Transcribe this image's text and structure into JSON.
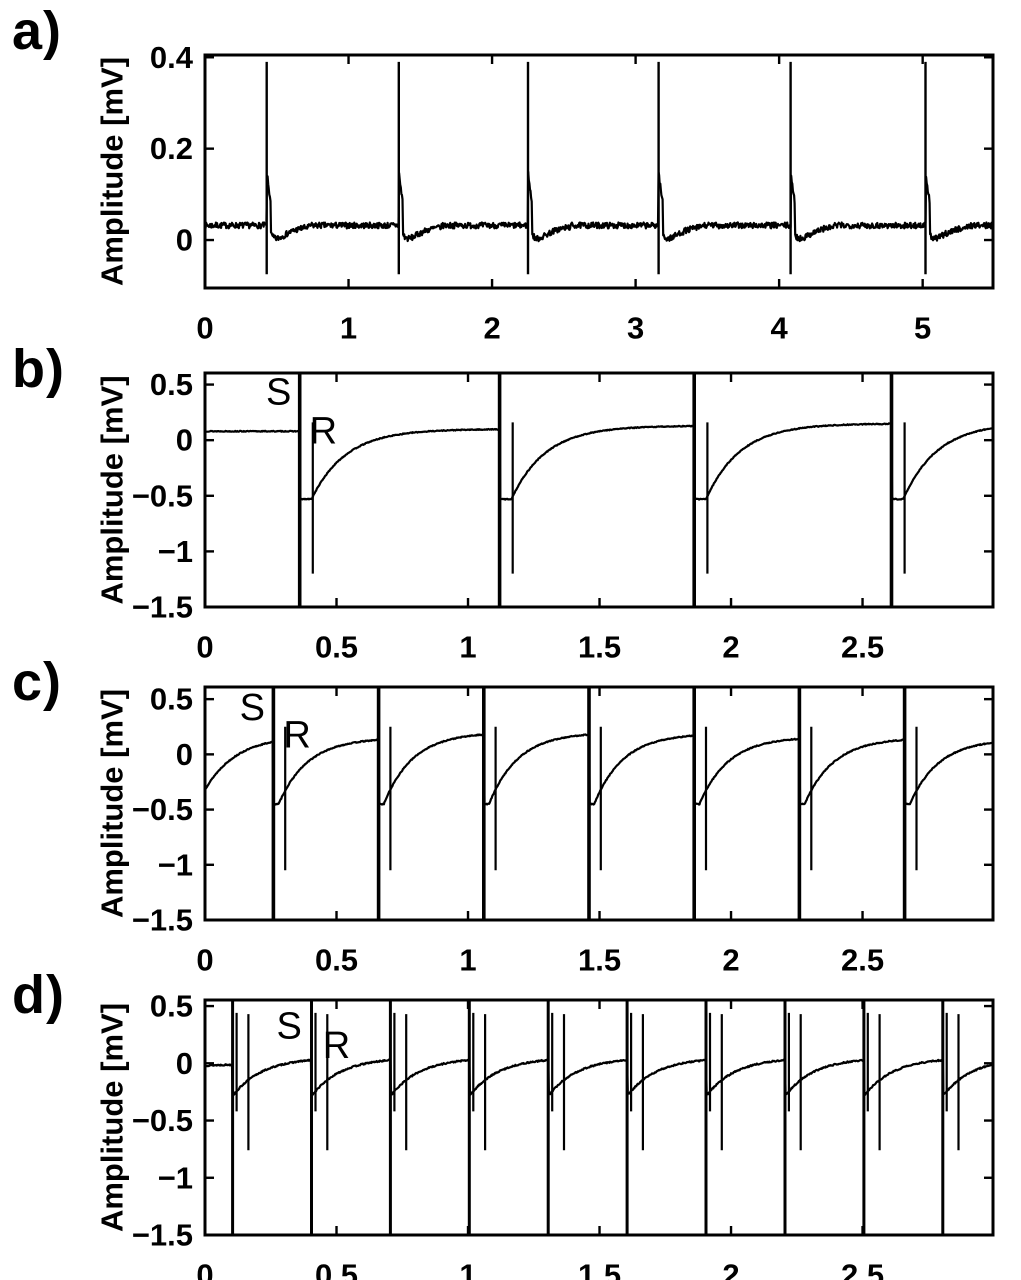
{
  "figure": {
    "panels": [
      {
        "letter": "a)"
      },
      {
        "letter": "b)"
      },
      {
        "letter": "c)"
      },
      {
        "letter": "d)"
      }
    ],
    "ink_color": "#000000",
    "background_color": "#ffffff"
  },
  "chart_data": [
    {
      "type": "line",
      "panel": "a",
      "title": "",
      "xlabel": "",
      "ylabel": "Amplitude [mV]",
      "xlim": [
        0,
        5.49
      ],
      "ylim": [
        -0.105,
        0.405
      ],
      "xticks": [
        0,
        1,
        2,
        3,
        4,
        5
      ],
      "xtick_labels": [
        "0",
        "1",
        "2",
        "3",
        "4",
        "5"
      ],
      "yticks": [
        0,
        0.2,
        0.4
      ],
      "ytick_labels": [
        "0",
        "0.2",
        "0.4"
      ],
      "grid": false,
      "description": "Surface ECG: noisy baseline near 0.03 mV with QRS spikes reaching 0.39 mV",
      "annotations": [],
      "waveform": {
        "kind": "ecg",
        "baseline": 0.032,
        "noise": 0.013,
        "beat_times": [
          0.43,
          1.35,
          2.25,
          3.16,
          4.08,
          5.02
        ],
        "spike_top": 0.39,
        "spike_bottom": -0.075,
        "hump_amp": 0.12,
        "hump_tau": 0.035,
        "under_amp": 0.07,
        "under_tau": 0.09
      }
    },
    {
      "type": "line",
      "panel": "b",
      "title": "",
      "xlabel": "",
      "ylabel": "Amplitude [mV]",
      "xlim": [
        0,
        2.996
      ],
      "ylim": [
        -1.5,
        0.604
      ],
      "xticks": [
        0,
        0.5,
        1,
        1.5,
        2,
        2.5
      ],
      "xtick_labels": [
        "0",
        "0.5",
        "1",
        "1.5",
        "2",
        "2.5"
      ],
      "yticks": [
        0.5,
        0,
        -0.5,
        -1,
        -1.5
      ],
      "ytick_labels": [
        "0.5",
        "0",
        "−0.5",
        "−1",
        "−1.5"
      ],
      "grid": false,
      "description": "Paced intracardiac electrogram, stimulus S every ~0.75 s followed by response R and exponential recovery",
      "annotations": [
        {
          "text": "S",
          "x": 0.28,
          "y": 0.43
        },
        {
          "text": "R",
          "x": 0.45,
          "y": 0.08
        }
      ],
      "waveform": {
        "kind": "paced",
        "stim_times": [
          0.36,
          1.12,
          1.86,
          2.61
        ],
        "pre": {
          "level": 0.08,
          "amp": 0,
          "tau": 1
        },
        "drop": -0.53,
        "drop_dur": 0.045,
        "tau": 0.13,
        "levels": [
          0.1,
          0.13,
          0.15,
          0.16
        ],
        "r_spike": {
          "dt": 0.05,
          "top": 0.16,
          "bottom": -1.2
        },
        "noise": 0.008
      }
    },
    {
      "type": "line",
      "panel": "c",
      "title": "",
      "xlabel": "",
      "ylabel": "Amplitude [mV]",
      "xlim": [
        0,
        2.996
      ],
      "ylim": [
        -1.5,
        0.61
      ],
      "xticks": [
        0,
        0.5,
        1,
        1.5,
        2,
        2.5
      ],
      "xtick_labels": [
        "0",
        "0.5",
        "1",
        "1.5",
        "2",
        "2.5"
      ],
      "yticks": [
        0.5,
        0,
        -0.5,
        -1,
        -1.5
      ],
      "ytick_labels": [
        "0.5",
        "0",
        "−0.5",
        "−1",
        "−1.5"
      ],
      "grid": false,
      "description": "Paced electrogram, stimulus S every ~0.40 s with response R and partial diastolic recovery",
      "annotations": [
        {
          "text": "S",
          "x": 0.18,
          "y": 0.42
        },
        {
          "text": "R",
          "x": 0.35,
          "y": 0.17
        }
      ],
      "waveform": {
        "kind": "paced",
        "stim_times": [
          0.26,
          0.66,
          1.06,
          1.46,
          1.86,
          2.26,
          2.66
        ],
        "pre": {
          "level": 0.17,
          "amp": 0.49,
          "tau": 0.12
        },
        "drop": -0.45,
        "drop_dur": 0.02,
        "tau": 0.11,
        "levels": [
          0.15,
          0.2,
          0.2,
          0.19,
          0.16,
          0.15,
          0.14
        ],
        "r_spike": {
          "dt": 0.045,
          "top": 0.25,
          "bottom": -1.05
        },
        "noise": 0.009
      }
    },
    {
      "type": "line",
      "panel": "d",
      "title": "",
      "xlabel": "",
      "ylabel": "Amplitude [mV]",
      "xlim": [
        0,
        2.996
      ],
      "ylim": [
        -1.5,
        0.553
      ],
      "xticks": [
        0,
        0.5,
        1,
        1.5,
        2,
        2.5
      ],
      "xtick_labels": [
        "0",
        "0.5",
        "1",
        "1.5",
        "2",
        "2.5"
      ],
      "yticks": [
        0.5,
        0,
        -0.5,
        -1,
        -1.5
      ],
      "ytick_labels": [
        "0.5",
        "0",
        "−0.5",
        "−1",
        "−1.5"
      ],
      "grid": false,
      "description": "Rapid pacing, stimulus S every ~0.30 s, biphasic response spikes R, shallow recovery toward 0 mV",
      "annotations": [
        {
          "text": "S",
          "x": 0.32,
          "y": 0.32
        },
        {
          "text": "R",
          "x": 0.5,
          "y": 0.15
        }
      ],
      "waveform": {
        "kind": "paced",
        "stim_times": [
          0.105,
          0.405,
          0.705,
          1.005,
          1.305,
          1.605,
          1.905,
          2.205,
          2.505,
          2.805
        ],
        "pre": {
          "level": 0.0,
          "amp": 0.02,
          "tau": 0.2
        },
        "drop": -0.27,
        "drop_dur": 0.006,
        "tau": 0.11,
        "levels": [
          0.05,
          0.05,
          0.05,
          0.05,
          0.05,
          0.05,
          0.05,
          0.05,
          0.05,
          0.05
        ],
        "a_spike": {
          "dt": 0.015,
          "top": 0.44,
          "bottom": -0.42
        },
        "r_spike": {
          "dt": 0.06,
          "top": 0.43,
          "bottom": -0.76
        },
        "noise": 0.012
      }
    }
  ]
}
